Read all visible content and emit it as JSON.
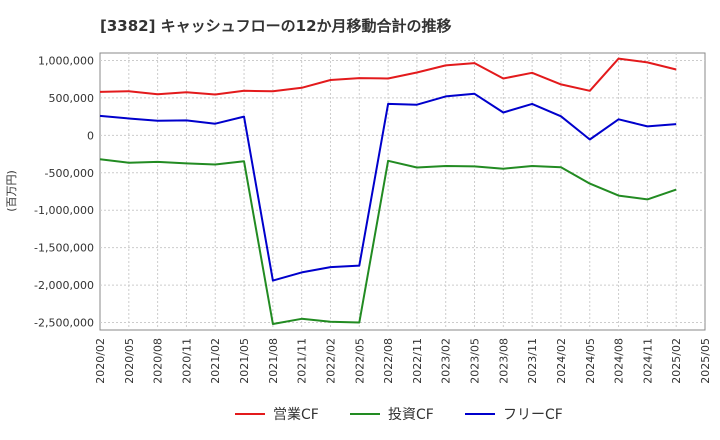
{
  "chart_data": {
    "type": "line",
    "title": "[3382]  キャッシュフローの12か月移動合計の推移",
    "ylabel": "(百万円)",
    "xlabel": "",
    "ylim": [
      -2600000,
      1100000
    ],
    "y_ticks": [
      1000000,
      500000,
      0,
      -500000,
      -1000000,
      -1500000,
      -2000000,
      -2500000
    ],
    "y_tick_labels": [
      "1,000,000",
      "500,000",
      "0",
      "-500,000",
      "-1,000,000",
      "-1,500,000",
      "-2,000,000",
      "-2,500,000"
    ],
    "x_tick_labels": [
      "2020/02",
      "2020/05",
      "2020/08",
      "2020/11",
      "2021/02",
      "2021/05",
      "2021/08",
      "2021/11",
      "2022/02",
      "2022/05",
      "2022/08",
      "2022/11",
      "2023/02",
      "2023/05",
      "2023/08",
      "2023/11",
      "2024/02",
      "2024/05",
      "2024/08",
      "2024/11",
      "2025/02",
      "2025/05"
    ],
    "x": [
      "2020/02",
      "2020/05",
      "2020/08",
      "2020/11",
      "2021/02",
      "2021/05",
      "2021/08",
      "2021/11",
      "2022/02",
      "2022/05",
      "2022/08",
      "2022/11",
      "2023/02",
      "2023/05",
      "2023/08",
      "2023/11",
      "2024/02",
      "2024/05",
      "2024/08",
      "2024/11",
      "2025/02"
    ],
    "series": [
      {
        "name": "営業CF",
        "color": "#e31a1c",
        "values": [
          580000,
          590000,
          550000,
          575000,
          545000,
          595000,
          590000,
          635000,
          740000,
          765000,
          760000,
          840000,
          935000,
          965000,
          760000,
          835000,
          680000,
          595000,
          1025000,
          975000,
          880000
        ]
      },
      {
        "name": "投資CF",
        "color": "#228b22",
        "values": [
          -320000,
          -365000,
          -355000,
          -375000,
          -390000,
          -345000,
          -2520000,
          -2450000,
          -2490000,
          -2500000,
          -340000,
          -430000,
          -410000,
          -415000,
          -445000,
          -410000,
          -425000,
          -645000,
          -805000,
          -855000,
          -725000
        ]
      },
      {
        "name": "フリーCF",
        "color": "#0000cc",
        "values": [
          260000,
          225000,
          195000,
          200000,
          155000,
          250000,
          -1940000,
          -1830000,
          -1760000,
          -1740000,
          420000,
          410000,
          520000,
          555000,
          305000,
          420000,
          255000,
          -55000,
          215000,
          120000,
          150000
        ]
      }
    ],
    "legend_position": "bottom-center",
    "grid": true
  }
}
